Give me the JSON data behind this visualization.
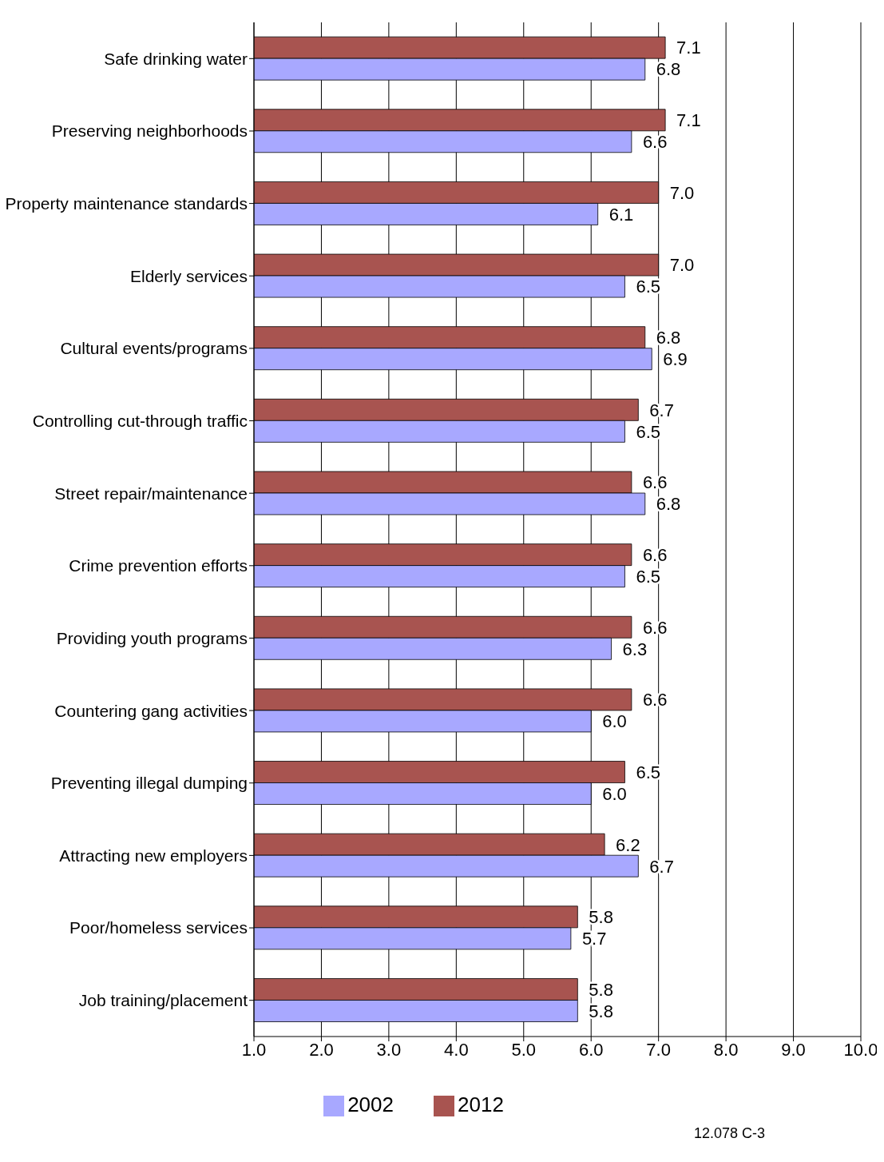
{
  "chart_data": {
    "type": "bar",
    "orientation": "horizontal",
    "categories": [
      "Safe drinking water",
      "Preserving neighborhoods",
      "Property maintenance standards",
      "Elderly services",
      "Cultural events/programs",
      "Controlling cut-through traffic",
      "Street repair/maintenance",
      "Crime prevention efforts",
      "Providing youth programs",
      "Countering gang activities",
      "Preventing illegal dumping",
      "Attracting new employers",
      "Poor/homeless services",
      "Job training/placement"
    ],
    "series": [
      {
        "name": "2012",
        "color": "#a85450",
        "values": [
          7.1,
          7.1,
          7.0,
          7.0,
          6.8,
          6.7,
          6.6,
          6.6,
          6.6,
          6.6,
          6.5,
          6.2,
          5.8,
          5.8
        ],
        "value_labels": [
          "7.1",
          "7.1",
          "7.0",
          "7.0",
          "6.8",
          "6.7",
          "6.6",
          "6.6",
          "6.6",
          "6.6",
          "6.5",
          "6.2",
          "5.8",
          "5.8"
        ]
      },
      {
        "name": "2002",
        "color": "#a8a8ff",
        "values": [
          6.8,
          6.6,
          6.1,
          6.5,
          6.9,
          6.5,
          6.8,
          6.5,
          6.3,
          6.0,
          6.0,
          6.7,
          5.7,
          5.8
        ],
        "value_labels": [
          "6.8",
          "6.6",
          "6.1",
          "6.5",
          "6.9",
          "6.5",
          "6.8",
          "6.5",
          "6.3",
          "6.0",
          "6.0",
          "6.7",
          "5.7",
          "5.8"
        ]
      }
    ],
    "xlim": [
      1,
      10
    ],
    "xticks": [
      {
        "value": 1,
        "label": "1.0"
      },
      {
        "value": 2,
        "label": "2.0"
      },
      {
        "value": 3,
        "label": "3.0"
      },
      {
        "value": 4,
        "label": "4.0"
      },
      {
        "value": 5,
        "label": "5.0"
      },
      {
        "value": 6,
        "label": "6.0"
      },
      {
        "value": 7,
        "label": "7.0"
      },
      {
        "value": 8,
        "label": "8.0"
      },
      {
        "value": 9,
        "label": "9.0"
      },
      {
        "value": 10,
        "label": "10.0"
      }
    ],
    "grid": "x",
    "legend": "bottom",
    "annotations": [
      "12.078 C-3"
    ]
  }
}
